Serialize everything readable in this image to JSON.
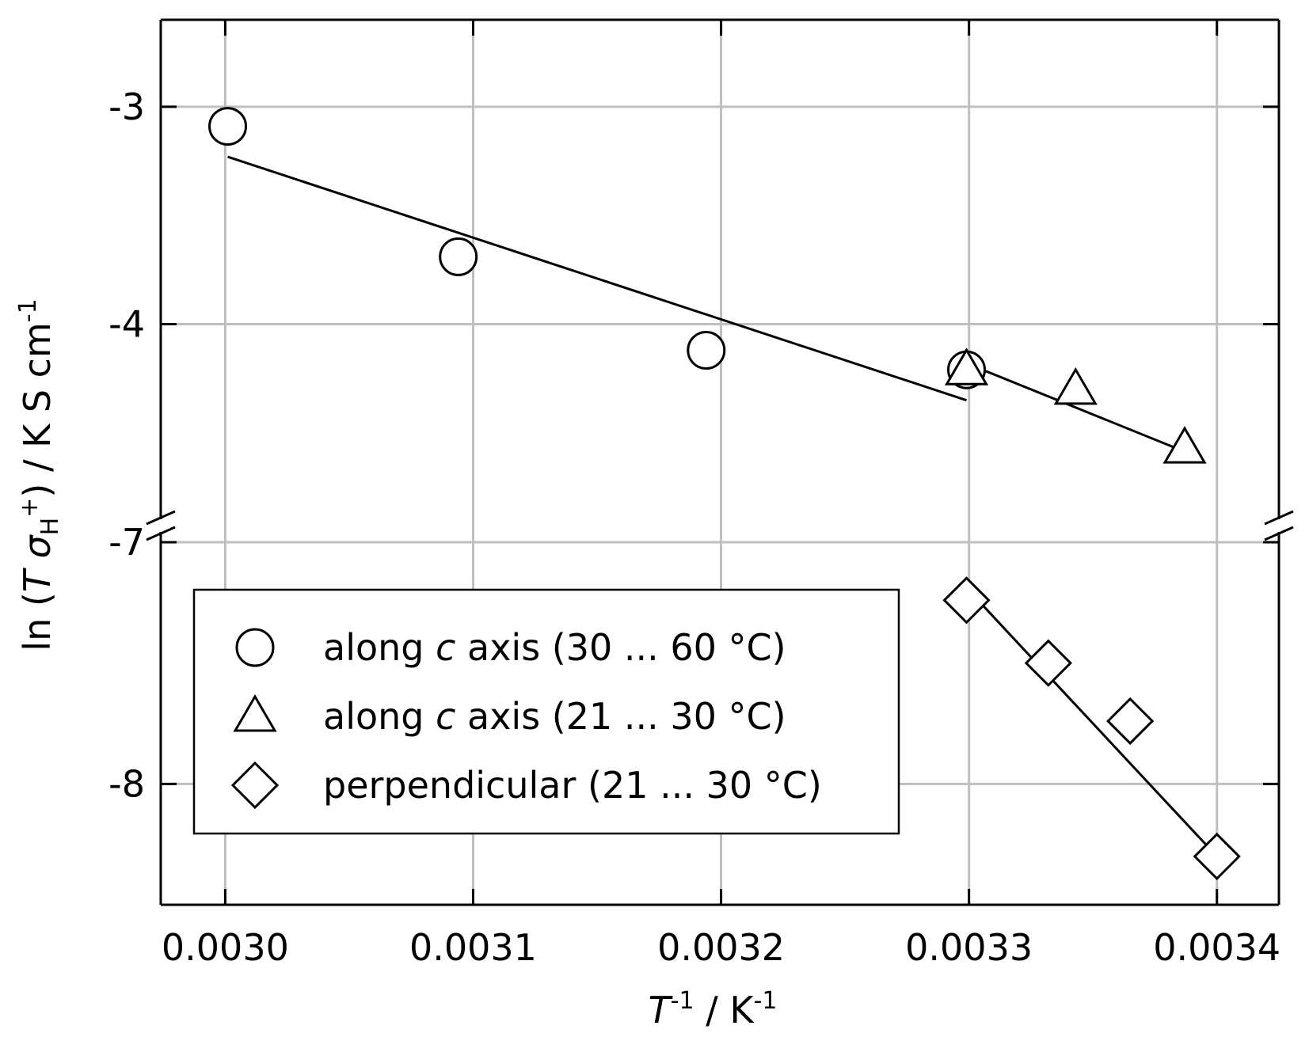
{
  "chart_data": {
    "type": "scatter",
    "x_ticks": [
      0.003,
      0.0031,
      0.0032,
      0.0033,
      0.0034
    ],
    "x_tick_labels": [
      "0.0030",
      "0.0031",
      "0.0032",
      "0.0033",
      "0.0034"
    ],
    "xlim": [
      0.002974,
      0.003425
    ],
    "y_segments": [
      {
        "name": "upper",
        "ylim": [
          -4.85,
          -2.6
        ],
        "ticks": [
          -3,
          -4
        ],
        "tick_labels": [
          "-3",
          "-4"
        ]
      },
      {
        "name": "lower",
        "ylim": [
          -8.5,
          -7.0
        ],
        "ticks": [
          -7,
          -8
        ],
        "tick_labels": [
          "-7",
          "-8"
        ]
      }
    ],
    "axis_break": true,
    "grid": true,
    "xlabel": {
      "main": "T",
      "sup1": "-1",
      "rest": " / K",
      "sup2": "-1"
    },
    "ylabel": {
      "pre": "ln (",
      "italic1": "T σ",
      "sub": "H",
      "sup": "+",
      "mid": ") / K S cm",
      "sup2": "-1"
    },
    "series": [
      {
        "name_pre": "along ",
        "name_italic": "c",
        "name_post": " axis (30 ... 60 °C)",
        "marker": "circle",
        "segment": "upper",
        "points": [
          [
            0.003001,
            -3.09
          ],
          [
            0.003094,
            -3.69
          ],
          [
            0.003194,
            -4.12
          ],
          [
            0.003299,
            -4.21
          ]
        ],
        "fit": [
          [
            0.003001,
            -3.23
          ],
          [
            0.003299,
            -4.35
          ]
        ]
      },
      {
        "name_pre": "along ",
        "name_italic": "c",
        "name_post": " axis (21 ... 30 °C)",
        "marker": "triangle",
        "segment": "upper",
        "points": [
          [
            0.003299,
            -4.21
          ],
          [
            0.003343,
            -4.3
          ],
          [
            0.003387,
            -4.57
          ]
        ],
        "fit": [
          [
            0.003299,
            -4.18
          ],
          [
            0.00339,
            -4.6
          ]
        ]
      },
      {
        "name_pre": "perpendicular (21 ... 30 °C)",
        "name_italic": "",
        "name_post": "",
        "marker": "diamond",
        "segment": "lower",
        "points": [
          [
            0.003299,
            -7.24
          ],
          [
            0.003332,
            -7.5
          ],
          [
            0.003365,
            -7.74
          ],
          [
            0.0034,
            -8.3
          ]
        ],
        "fit": [
          [
            0.0033,
            -7.2
          ],
          [
            0.0034,
            -8.3
          ]
        ]
      }
    ],
    "legend_position": "bottom-left"
  }
}
